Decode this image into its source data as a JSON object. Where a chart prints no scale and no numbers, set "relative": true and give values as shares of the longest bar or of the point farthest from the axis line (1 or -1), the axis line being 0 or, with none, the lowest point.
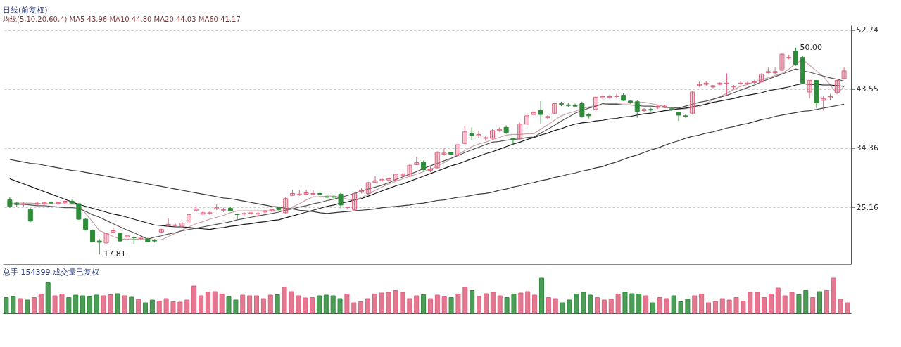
{
  "chart_data": [
    {
      "type": "candlestick",
      "title": "日线(前复权)",
      "subtitle": "均线(5,10,20,60,4) MA5 43.96 MA10 44.80 MA20 44.03 MA60 41.17",
      "categories": [
        null,
        null,
        null,
        null,
        null,
        null,
        null,
        null,
        null,
        null,
        null,
        null,
        null,
        null,
        null,
        null,
        null,
        null,
        null,
        null,
        null,
        null,
        null,
        null,
        null,
        null,
        null,
        null,
        null,
        null,
        null,
        null,
        null,
        null,
        null,
        null,
        null,
        null,
        null,
        null,
        null,
        null,
        null,
        null,
        null,
        null,
        null,
        null,
        null,
        null,
        null,
        null,
        null,
        null,
        null,
        null,
        null,
        null,
        null,
        null,
        null,
        null,
        null,
        null,
        null,
        null,
        null,
        null,
        null,
        null,
        null,
        null,
        null,
        null,
        null,
        null,
        null,
        null,
        null,
        null,
        null,
        null,
        null,
        null,
        null,
        null,
        null,
        null,
        null,
        null,
        null,
        null,
        null,
        null,
        null,
        null,
        null,
        null,
        null,
        null,
        null,
        null,
        null,
        null,
        null,
        null,
        null,
        null,
        null,
        null,
        null,
        null,
        null,
        null,
        null,
        null,
        null,
        null,
        null,
        null,
        null,
        null
      ],
      "ohlc": [
        [
          26.3,
          26.8,
          25.1,
          25.3
        ],
        [
          25.8,
          26.0,
          25.2,
          25.6
        ],
        [
          25.6,
          25.9,
          25.3,
          25.7
        ],
        [
          24.8,
          25.0,
          22.9,
          23.0
        ],
        [
          25.6,
          26.0,
          25.4,
          25.8
        ],
        [
          25.7,
          26.0,
          25.4,
          25.9
        ],
        [
          25.9,
          26.1,
          25.6,
          25.8
        ],
        [
          25.8,
          26.1,
          25.5,
          25.9
        ],
        [
          25.9,
          26.2,
          25.6,
          26.1
        ],
        [
          26.1,
          26.3,
          25.7,
          25.8
        ],
        [
          25.7,
          25.8,
          23.2,
          23.3
        ],
        [
          23.3,
          23.4,
          21.5,
          21.7
        ],
        [
          21.6,
          21.7,
          19.7,
          19.8
        ],
        [
          19.9,
          20.2,
          17.81,
          19.7
        ],
        [
          19.6,
          21.2,
          19.5,
          21.1
        ],
        [
          21.3,
          21.9,
          21.1,
          21.5
        ],
        [
          21.1,
          21.3,
          19.8,
          19.9
        ],
        [
          20.5,
          21.0,
          20.3,
          20.7
        ],
        [
          20.5,
          20.6,
          19.4,
          20.4
        ],
        [
          20.3,
          20.6,
          20.1,
          20.5
        ],
        [
          20.2,
          20.4,
          19.7,
          19.8
        ],
        [
          20.0,
          20.2,
          19.7,
          19.9
        ],
        [
          21.3,
          21.8,
          21.2,
          21.7
        ],
        [
          22.3,
          23.4,
          22.1,
          22.5
        ],
        [
          22.3,
          22.6,
          22.0,
          22.4
        ],
        [
          22.2,
          22.9,
          22.1,
          22.7
        ],
        [
          22.7,
          24.1,
          22.6,
          24.0
        ],
        [
          24.7,
          25.5,
          24.5,
          24.9
        ],
        [
          24.1,
          24.6,
          23.9,
          24.3
        ],
        [
          24.2,
          24.6,
          24.0,
          24.3
        ],
        [
          24.9,
          25.6,
          24.7,
          25.1
        ],
        [
          24.7,
          25.1,
          24.4,
          24.8
        ],
        [
          25.0,
          25.2,
          24.5,
          24.6
        ],
        [
          24.1,
          24.2,
          23.3,
          24.0
        ],
        [
          24.1,
          24.4,
          23.9,
          24.2
        ],
        [
          24.2,
          24.5,
          24.0,
          24.3
        ],
        [
          24.1,
          24.4,
          23.8,
          24.2
        ],
        [
          24.4,
          24.7,
          24.2,
          24.6
        ],
        [
          24.6,
          24.9,
          24.4,
          24.8
        ],
        [
          25.1,
          25.3,
          24.7,
          24.8
        ],
        [
          24.3,
          26.7,
          24.2,
          26.5
        ],
        [
          27.0,
          27.9,
          26.9,
          27.3
        ],
        [
          27.1,
          27.8,
          26.9,
          27.2
        ],
        [
          27.2,
          27.9,
          27.0,
          27.4
        ],
        [
          27.2,
          27.8,
          27.0,
          27.3
        ],
        [
          27.3,
          27.7,
          27.0,
          27.2
        ],
        [
          26.8,
          27.1,
          26.5,
          26.7
        ],
        [
          26.8,
          27.0,
          26.5,
          26.7
        ],
        [
          27.2,
          27.4,
          25.0,
          25.5
        ],
        [
          25.1,
          25.3,
          24.9,
          25.2
        ],
        [
          24.8,
          27.5,
          24.7,
          27.3
        ],
        [
          27.5,
          28.2,
          27.3,
          27.8
        ],
        [
          27.3,
          29.1,
          27.2,
          29.0
        ],
        [
          29.0,
          30.0,
          28.9,
          29.3
        ],
        [
          29.3,
          29.8,
          29.1,
          29.5
        ],
        [
          29.4,
          29.9,
          29.2,
          29.6
        ],
        [
          29.3,
          30.4,
          29.2,
          30.3
        ],
        [
          30.1,
          30.5,
          29.9,
          30.3
        ],
        [
          30.0,
          31.8,
          29.9,
          31.7
        ],
        [
          31.8,
          33.0,
          31.7,
          32.1
        ],
        [
          32.2,
          32.4,
          30.9,
          31.0
        ],
        [
          30.9,
          31.6,
          30.6,
          31.1
        ],
        [
          31.3,
          33.9,
          31.2,
          33.7
        ],
        [
          33.4,
          34.3,
          33.2,
          33.6
        ],
        [
          33.7,
          33.8,
          33.3,
          33.4
        ],
        [
          33.3,
          35.0,
          33.2,
          34.9
        ],
        [
          35.1,
          37.8,
          35.0,
          36.9
        ],
        [
          36.6,
          37.6,
          35.6,
          36.3
        ],
        [
          36.3,
          37.1,
          35.9,
          36.5
        ],
        [
          35.9,
          36.2,
          35.5,
          36.0
        ],
        [
          35.9,
          37.3,
          35.8,
          37.1
        ],
        [
          37.1,
          37.6,
          36.9,
          37.3
        ],
        [
          37.6,
          37.9,
          36.6,
          36.7
        ],
        [
          35.9,
          36.0,
          34.8,
          35.7
        ],
        [
          35.8,
          38.3,
          35.7,
          38.1
        ],
        [
          38.1,
          39.6,
          38.0,
          39.4
        ],
        [
          39.6,
          40.2,
          39.4,
          39.9
        ],
        [
          40.2,
          41.7,
          38.2,
          39.6
        ],
        [
          39.1,
          39.5,
          38.9,
          39.3
        ],
        [
          39.8,
          41.4,
          39.7,
          41.3
        ],
        [
          41.3,
          41.6,
          40.9,
          41.2
        ],
        [
          41.1,
          41.4,
          40.8,
          41.0
        ],
        [
          41.0,
          41.3,
          40.8,
          40.9
        ],
        [
          41.3,
          41.6,
          39.1,
          39.3
        ],
        [
          39.6,
          39.8,
          39.0,
          39.4
        ],
        [
          40.4,
          42.4,
          40.3,
          42.3
        ],
        [
          42.2,
          42.7,
          42.0,
          42.4
        ],
        [
          42.3,
          42.7,
          42.0,
          42.4
        ],
        [
          42.4,
          42.8,
          42.1,
          42.5
        ],
        [
          42.6,
          42.9,
          41.7,
          41.8
        ],
        [
          41.7,
          41.9,
          41.3,
          41.5
        ],
        [
          41.6,
          41.8,
          39.1,
          40.1
        ],
        [
          40.2,
          40.6,
          40.0,
          40.4
        ],
        [
          40.4,
          40.6,
          40.1,
          40.3
        ],
        [
          40.7,
          41.0,
          40.5,
          40.9
        ],
        [
          40.8,
          41.1,
          40.6,
          40.9
        ],
        [
          40.5,
          40.7,
          40.2,
          40.4
        ],
        [
          39.9,
          40.0,
          38.6,
          39.5
        ],
        [
          39.4,
          39.6,
          39.1,
          39.3
        ],
        [
          39.8,
          43.2,
          39.6,
          43.1
        ],
        [
          44.1,
          44.7,
          43.9,
          44.3
        ],
        [
          44.3,
          44.8,
          44.1,
          44.5
        ],
        [
          43.9,
          44.2,
          43.7,
          44.1
        ],
        [
          44.3,
          44.6,
          44.2,
          44.5
        ],
        [
          44.4,
          46.0,
          42.6,
          44.5
        ],
        [
          43.9,
          44.2,
          43.6,
          44.0
        ],
        [
          44.4,
          44.7,
          44.2,
          44.5
        ],
        [
          44.4,
          44.7,
          44.2,
          44.5
        ],
        [
          44.6,
          45.0,
          44.4,
          44.7
        ],
        [
          44.7,
          46.0,
          44.6,
          45.9
        ],
        [
          46.1,
          46.9,
          46.0,
          46.3
        ],
        [
          46.1,
          46.9,
          45.9,
          46.3
        ],
        [
          46.5,
          49.1,
          46.4,
          49.0
        ],
        [
          48.4,
          48.9,
          48.2,
          48.5
        ],
        [
          49.5,
          50.0,
          47.2,
          47.4
        ],
        [
          48.5,
          48.7,
          44.4,
          44.5
        ],
        [
          43.1,
          45.0,
          42.1,
          44.9
        ],
        [
          44.9,
          45.0,
          40.6,
          41.4
        ],
        [
          41.8,
          42.5,
          40.2,
          42.1
        ],
        [
          42.2,
          42.8,
          41.8,
          42.4
        ],
        [
          43.0,
          45.0,
          42.9,
          44.9
        ],
        [
          45.2,
          46.9,
          45.1,
          46.4
        ]
      ],
      "colors": [
        "#2e8b3a",
        "#2e8b3a",
        "#e0607e",
        "#2e8b3a",
        "#e0607e",
        "#e0607e",
        "#2e8b3a",
        "#e0607e",
        "#e0607e",
        "#2e8b3a",
        "#2e8b3a",
        "#2e8b3a",
        "#2e8b3a",
        "#2e8b3a",
        "#e0607e",
        "#e0607e",
        "#2e8b3a",
        "#e0607e",
        "#2e8b3a",
        "#e0607e",
        "#2e8b3a",
        "#2e8b3a",
        "#e0607e",
        "#e0607e",
        "#e0607e",
        "#e0607e",
        "#e0607e",
        "#e0607e",
        "#e0607e",
        "#e0607e",
        "#e0607e",
        "#e0607e",
        "#2e8b3a",
        "#2e8b3a",
        "#e0607e",
        "#e0607e",
        "#e0607e",
        "#e0607e",
        "#e0607e",
        "#2e8b3a",
        "#e0607e",
        "#e0607e",
        "#e0607e",
        "#e0607e",
        "#e0607e",
        "#2e8b3a",
        "#2e8b3a",
        "#2e8b3a",
        "#2e8b3a",
        "#e0607e",
        "#e0607e",
        "#e0607e",
        "#e0607e",
        "#e0607e",
        "#e0607e",
        "#e0607e",
        "#e0607e",
        "#e0607e",
        "#e0607e",
        "#e0607e",
        "#2e8b3a",
        "#e0607e",
        "#e0607e",
        "#e0607e",
        "#2e8b3a",
        "#e0607e",
        "#e0607e",
        "#2e8b3a",
        "#e0607e",
        "#e0607e",
        "#e0607e",
        "#e0607e",
        "#2e8b3a",
        "#2e8b3a",
        "#e0607e",
        "#e0607e",
        "#e0607e",
        "#2e8b3a",
        "#e0607e",
        "#e0607e",
        "#2e8b3a",
        "#2e8b3a",
        "#2e8b3a",
        "#2e8b3a",
        "#2e8b3a",
        "#e0607e",
        "#e0607e",
        "#e0607e",
        "#e0607e",
        "#2e8b3a",
        "#2e8b3a",
        "#2e8b3a",
        "#e0607e",
        "#2e8b3a",
        "#e0607e",
        "#e0607e",
        "#2e8b3a",
        "#2e8b3a",
        "#2e8b3a",
        "#e0607e",
        "#e0607e",
        "#e0607e",
        "#e0607e",
        "#e0607e",
        "#e0607e",
        "#e0607e",
        "#e0607e",
        "#e0607e",
        "#e0607e",
        "#e0607e",
        "#e0607e",
        "#e0607e",
        "#e0607e",
        "#e0607e",
        "#2e8b3a",
        "#2e8b3a",
        "#e0607e",
        "#2e8b3a",
        "#e0607e",
        "#e0607e",
        "#e0607e",
        "#e0607e"
      ],
      "ylim": [
        16.3,
        53.5
      ],
      "yticks": [
        25.16,
        34.36,
        43.55,
        52.74
      ],
      "grid": "y",
      "tick_labels": "y",
      "series": [
        {
          "type": "line",
          "color": "#c9a3a8",
          "values": [
            25.8,
            25.8,
            25.8,
            25.8,
            25.7,
            25.7,
            25.7,
            25.7,
            25.7,
            25.6,
            25.6,
            24.2,
            22.9,
            21.5,
            21.1,
            20.6,
            20.2,
            20.2,
            20.2,
            20.2,
            20.1,
            20.1,
            20.1,
            20.6,
            21.1,
            21.6,
            22.1,
            22.6,
            22.9,
            23.3,
            23.6,
            23.9,
            24.3,
            24.6,
            24.6,
            24.6,
            24.6,
            24.6,
            24.6,
            24.6,
            24.6,
            25.2,
            25.7,
            26.3,
            26.8,
            26.8,
            26.9,
            26.9,
            26.7,
            26.4,
            26.2,
            26.7,
            27.2,
            27.8,
            28.3,
            28.8,
            29.2,
            29.6,
            30.0,
            30.3,
            30.7,
            31.1,
            31.5,
            32.1,
            32.7,
            33.4,
            34.0,
            34.6,
            35.0,
            35.3,
            35.7,
            36.0,
            36.4,
            36.5,
            36.5,
            36.6,
            36.6,
            37.3,
            38.0,
            38.7,
            39.4,
            39.8,
            40.1,
            40.5,
            40.8,
            41.0,
            41.1,
            41.3,
            41.3,
            41.4,
            41.4,
            41.5,
            41.5,
            41.3,
            41.1,
            40.8,
            40.6,
            40.4,
            40.5,
            40.7,
            40.8,
            41.3,
            41.9,
            42.4,
            42.9,
            43.5,
            44.0,
            44.3,
            44.7,
            45.0,
            45.3,
            45.7,
            46.0,
            46.7,
            47.5,
            48.2,
            47.3,
            46.4,
            45.5,
            44.2,
            42.8,
            44.0
          ]
        },
        {
          "type": "line",
          "color": "#555555",
          "values": [
            25.7,
            25.6,
            25.6,
            25.5,
            25.4,
            25.4,
            25.3,
            25.2,
            25.1,
            25.1,
            25.0,
            24.5,
            24.0,
            23.6,
            23.1,
            22.6,
            22.1,
            21.6,
            21.2,
            20.7,
            20.2,
            20.5,
            20.7,
            21.0,
            21.2,
            21.5,
            21.7,
            21.9,
            22.1,
            22.3,
            22.5,
            22.7,
            22.9,
            23.2,
            23.4,
            23.6,
            23.8,
            24.0,
            24.2,
            24.4,
            24.7,
            24.9,
            25.2,
            25.4,
            25.7,
            25.9,
            26.2,
            26.4,
            26.7,
            27.0,
            27.3,
            27.7,
            28.0,
            28.3,
            28.6,
            29.0,
            29.5,
            29.9,
            30.3,
            30.7,
            31.2,
            31.6,
            32.0,
            32.4,
            32.8,
            33.2,
            33.7,
            34.1,
            34.5,
            34.9,
            35.3,
            35.4,
            35.6,
            35.7,
            35.8,
            36.0,
            36.1,
            36.7,
            37.3,
            37.9,
            38.6,
            39.2,
            39.8,
            40.2,
            40.6,
            40.9,
            41.3,
            41.2,
            41.2,
            41.1,
            41.1,
            41.0,
            40.9,
            40.9,
            40.8,
            40.7,
            40.7,
            40.6,
            40.9,
            41.2,
            41.5,
            41.7,
            42.0,
            42.3,
            42.6,
            43.0,
            43.4,
            43.8,
            44.2,
            44.7,
            45.1,
            45.5,
            45.9,
            46.3,
            46.7,
            46.4,
            46.2,
            45.9,
            45.6,
            45.3,
            45.1,
            44.8
          ]
        },
        {
          "type": "line",
          "color": "#1a1a1a",
          "values": [
            29.6,
            29.2,
            28.8,
            28.4,
            28.0,
            27.6,
            27.2,
            26.8,
            26.4,
            26.0,
            25.6,
            25.3,
            25.0,
            24.7,
            24.4,
            24.1,
            23.9,
            23.6,
            23.3,
            23.0,
            22.7,
            22.4,
            22.3,
            22.2,
            22.1,
            22.1,
            22.0,
            21.9,
            21.8,
            21.7,
            21.9,
            22.0,
            22.2,
            22.3,
            22.5,
            22.6,
            22.8,
            22.9,
            23.1,
            23.2,
            23.5,
            23.8,
            24.1,
            24.4,
            24.7,
            25.0,
            25.3,
            25.5,
            25.8,
            26.0,
            26.3,
            26.5,
            26.9,
            27.3,
            27.7,
            28.1,
            28.5,
            28.8,
            29.2,
            29.6,
            30.0,
            30.4,
            30.8,
            31.2,
            31.6,
            31.9,
            32.3,
            32.7,
            33.1,
            33.5,
            33.8,
            34.2,
            34.6,
            35.0,
            35.3,
            35.7,
            36.0,
            36.4,
            36.7,
            37.1,
            37.4,
            37.8,
            38.1,
            38.3,
            38.4,
            38.6,
            38.7,
            38.9,
            39.0,
            39.2,
            39.3,
            39.5,
            39.7,
            39.8,
            40.0,
            40.2,
            40.3,
            40.5,
            40.6,
            40.8,
            41.0,
            41.2,
            41.5,
            41.7,
            41.9,
            42.1,
            42.4,
            42.6,
            42.8,
            43.0,
            43.3,
            43.5,
            43.7,
            43.9,
            44.2,
            44.4,
            44.3,
            44.3,
            44.2,
            44.2,
            44.1,
            44.0
          ]
        },
        {
          "type": "line",
          "color": "#3a3a3a",
          "values": [
            32.6,
            32.4,
            32.2,
            32.0,
            31.9,
            31.7,
            31.5,
            31.3,
            31.1,
            30.9,
            30.8,
            30.6,
            30.4,
            30.2,
            30.0,
            29.8,
            29.6,
            29.4,
            29.2,
            29.0,
            28.8,
            28.6,
            28.4,
            28.2,
            28.0,
            27.8,
            27.6,
            27.4,
            27.2,
            27.0,
            26.8,
            26.6,
            26.5,
            26.3,
            26.1,
            25.9,
            25.7,
            25.5,
            25.3,
            25.2,
            25.0,
            24.9,
            24.7,
            24.6,
            24.5,
            24.3,
            24.2,
            24.3,
            24.4,
            24.5,
            24.6,
            24.7,
            24.8,
            24.9,
            25.1,
            25.2,
            25.3,
            25.4,
            25.5,
            25.7,
            25.8,
            26.0,
            26.2,
            26.3,
            26.5,
            26.7,
            26.8,
            27.0,
            27.2,
            27.3,
            27.5,
            27.8,
            28.0,
            28.3,
            28.5,
            28.8,
            29.0,
            29.3,
            29.5,
            29.8,
            30.0,
            30.3,
            30.5,
            30.8,
            31.0,
            31.3,
            31.5,
            31.9,
            32.2,
            32.6,
            33.0,
            33.3,
            33.7,
            34.1,
            34.4,
            34.8,
            35.2,
            35.5,
            35.9,
            36.2,
            36.4,
            36.7,
            36.9,
            37.2,
            37.5,
            37.7,
            38.0,
            38.2,
            38.5,
            38.8,
            39.0,
            39.3,
            39.5,
            39.7,
            39.9,
            40.1,
            40.2,
            40.4,
            40.6,
            40.8,
            41.0,
            41.2
          ]
        }
      ],
      "annotations": [
        "17.81",
        "50.00"
      ]
    },
    {
      "type": "bar",
      "title": "总手 154399 成交量已复权",
      "relative": true,
      "tick_labels": false,
      "categories": [
        null,
        null,
        null,
        null,
        null,
        null,
        null,
        null,
        null,
        null,
        null,
        null,
        null,
        null,
        null,
        null,
        null,
        null,
        null,
        null,
        null,
        null,
        null,
        null,
        null,
        null,
        null,
        null,
        null,
        null,
        null,
        null,
        null,
        null,
        null,
        null,
        null,
        null,
        null,
        null,
        null,
        null,
        null,
        null,
        null,
        null,
        null,
        null,
        null,
        null,
        null,
        null,
        null,
        null,
        null,
        null,
        null,
        null,
        null,
        null,
        null,
        null,
        null,
        null,
        null,
        null,
        null,
        null,
        null,
        null,
        null,
        null,
        null,
        null,
        null,
        null,
        null,
        null,
        null,
        null,
        null,
        null,
        null,
        null,
        null,
        null,
        null,
        null,
        null,
        null,
        null,
        null,
        null,
        null,
        null,
        null,
        null,
        null,
        null,
        null,
        null,
        null,
        null,
        null,
        null,
        null,
        null,
        null,
        null,
        null,
        null,
        null,
        null,
        null,
        null,
        null,
        null,
        null,
        null,
        null,
        null,
        null
      ],
      "values": [
        0.45,
        0.47,
        0.42,
        0.38,
        0.45,
        0.55,
        0.87,
        0.5,
        0.55,
        0.45,
        0.52,
        0.5,
        0.47,
        0.52,
        0.5,
        0.53,
        0.56,
        0.5,
        0.46,
        0.4,
        0.3,
        0.38,
        0.35,
        0.42,
        0.33,
        0.32,
        0.38,
        0.78,
        0.5,
        0.6,
        0.62,
        0.55,
        0.47,
        0.38,
        0.52,
        0.5,
        0.5,
        0.42,
        0.52,
        0.53,
        0.75,
        0.62,
        0.5,
        0.44,
        0.45,
        0.5,
        0.52,
        0.5,
        0.42,
        0.55,
        0.3,
        0.33,
        0.42,
        0.55,
        0.58,
        0.6,
        0.65,
        0.6,
        0.42,
        0.5,
        0.53,
        0.42,
        0.52,
        0.47,
        0.45,
        0.55,
        0.75,
        0.65,
        0.48,
        0.56,
        0.6,
        0.5,
        0.45,
        0.55,
        0.58,
        0.62,
        0.52,
        1.0,
        0.45,
        0.42,
        0.3,
        0.38,
        0.55,
        0.6,
        0.52,
        0.45,
        0.38,
        0.4,
        0.55,
        0.6,
        0.56,
        0.55,
        0.5,
        0.3,
        0.45,
        0.42,
        0.5,
        0.33,
        0.4,
        0.5,
        0.55,
        0.3,
        0.34,
        0.42,
        0.38,
        0.45,
        0.35,
        0.6,
        0.6,
        0.45,
        0.55,
        0.72,
        0.5,
        0.6,
        0.53,
        0.65,
        0.45,
        0.62,
        0.65,
        1.0,
        0.4,
        0.3
      ],
      "colors": [
        "#2e8b3a",
        "#2e8b3a",
        "#e0607e",
        "#2e8b3a",
        "#e0607e",
        "#e0607e",
        "#2e8b3a",
        "#e0607e",
        "#e0607e",
        "#2e8b3a",
        "#2e8b3a",
        "#2e8b3a",
        "#2e8b3a",
        "#2e8b3a",
        "#e0607e",
        "#e0607e",
        "#2e8b3a",
        "#e0607e",
        "#2e8b3a",
        "#e0607e",
        "#2e8b3a",
        "#2e8b3a",
        "#e0607e",
        "#e0607e",
        "#e0607e",
        "#e0607e",
        "#e0607e",
        "#e0607e",
        "#e0607e",
        "#e0607e",
        "#e0607e",
        "#e0607e",
        "#2e8b3a",
        "#2e8b3a",
        "#e0607e",
        "#e0607e",
        "#e0607e",
        "#e0607e",
        "#e0607e",
        "#2e8b3a",
        "#e0607e",
        "#e0607e",
        "#e0607e",
        "#e0607e",
        "#e0607e",
        "#2e8b3a",
        "#2e8b3a",
        "#2e8b3a",
        "#2e8b3a",
        "#e0607e",
        "#e0607e",
        "#e0607e",
        "#e0607e",
        "#e0607e",
        "#e0607e",
        "#e0607e",
        "#e0607e",
        "#e0607e",
        "#e0607e",
        "#e0607e",
        "#2e8b3a",
        "#e0607e",
        "#e0607e",
        "#e0607e",
        "#2e8b3a",
        "#e0607e",
        "#e0607e",
        "#2e8b3a",
        "#e0607e",
        "#e0607e",
        "#e0607e",
        "#e0607e",
        "#2e8b3a",
        "#2e8b3a",
        "#e0607e",
        "#e0607e",
        "#e0607e",
        "#2e8b3a",
        "#e0607e",
        "#e0607e",
        "#2e8b3a",
        "#2e8b3a",
        "#2e8b3a",
        "#2e8b3a",
        "#2e8b3a",
        "#e0607e",
        "#e0607e",
        "#e0607e",
        "#e0607e",
        "#2e8b3a",
        "#2e8b3a",
        "#2e8b3a",
        "#e0607e",
        "#2e8b3a",
        "#e0607e",
        "#e0607e",
        "#2e8b3a",
        "#2e8b3a",
        "#2e8b3a",
        "#e0607e",
        "#e0607e",
        "#e0607e",
        "#e0607e",
        "#e0607e",
        "#e0607e",
        "#e0607e",
        "#e0607e",
        "#e0607e",
        "#e0607e",
        "#e0607e",
        "#e0607e",
        "#e0607e",
        "#e0607e",
        "#e0607e",
        "#2e8b3a",
        "#2e8b3a",
        "#e0607e",
        "#2e8b3a",
        "#e0607e",
        "#e0607e",
        "#e0607e",
        "#e0607e"
      ]
    }
  ]
}
